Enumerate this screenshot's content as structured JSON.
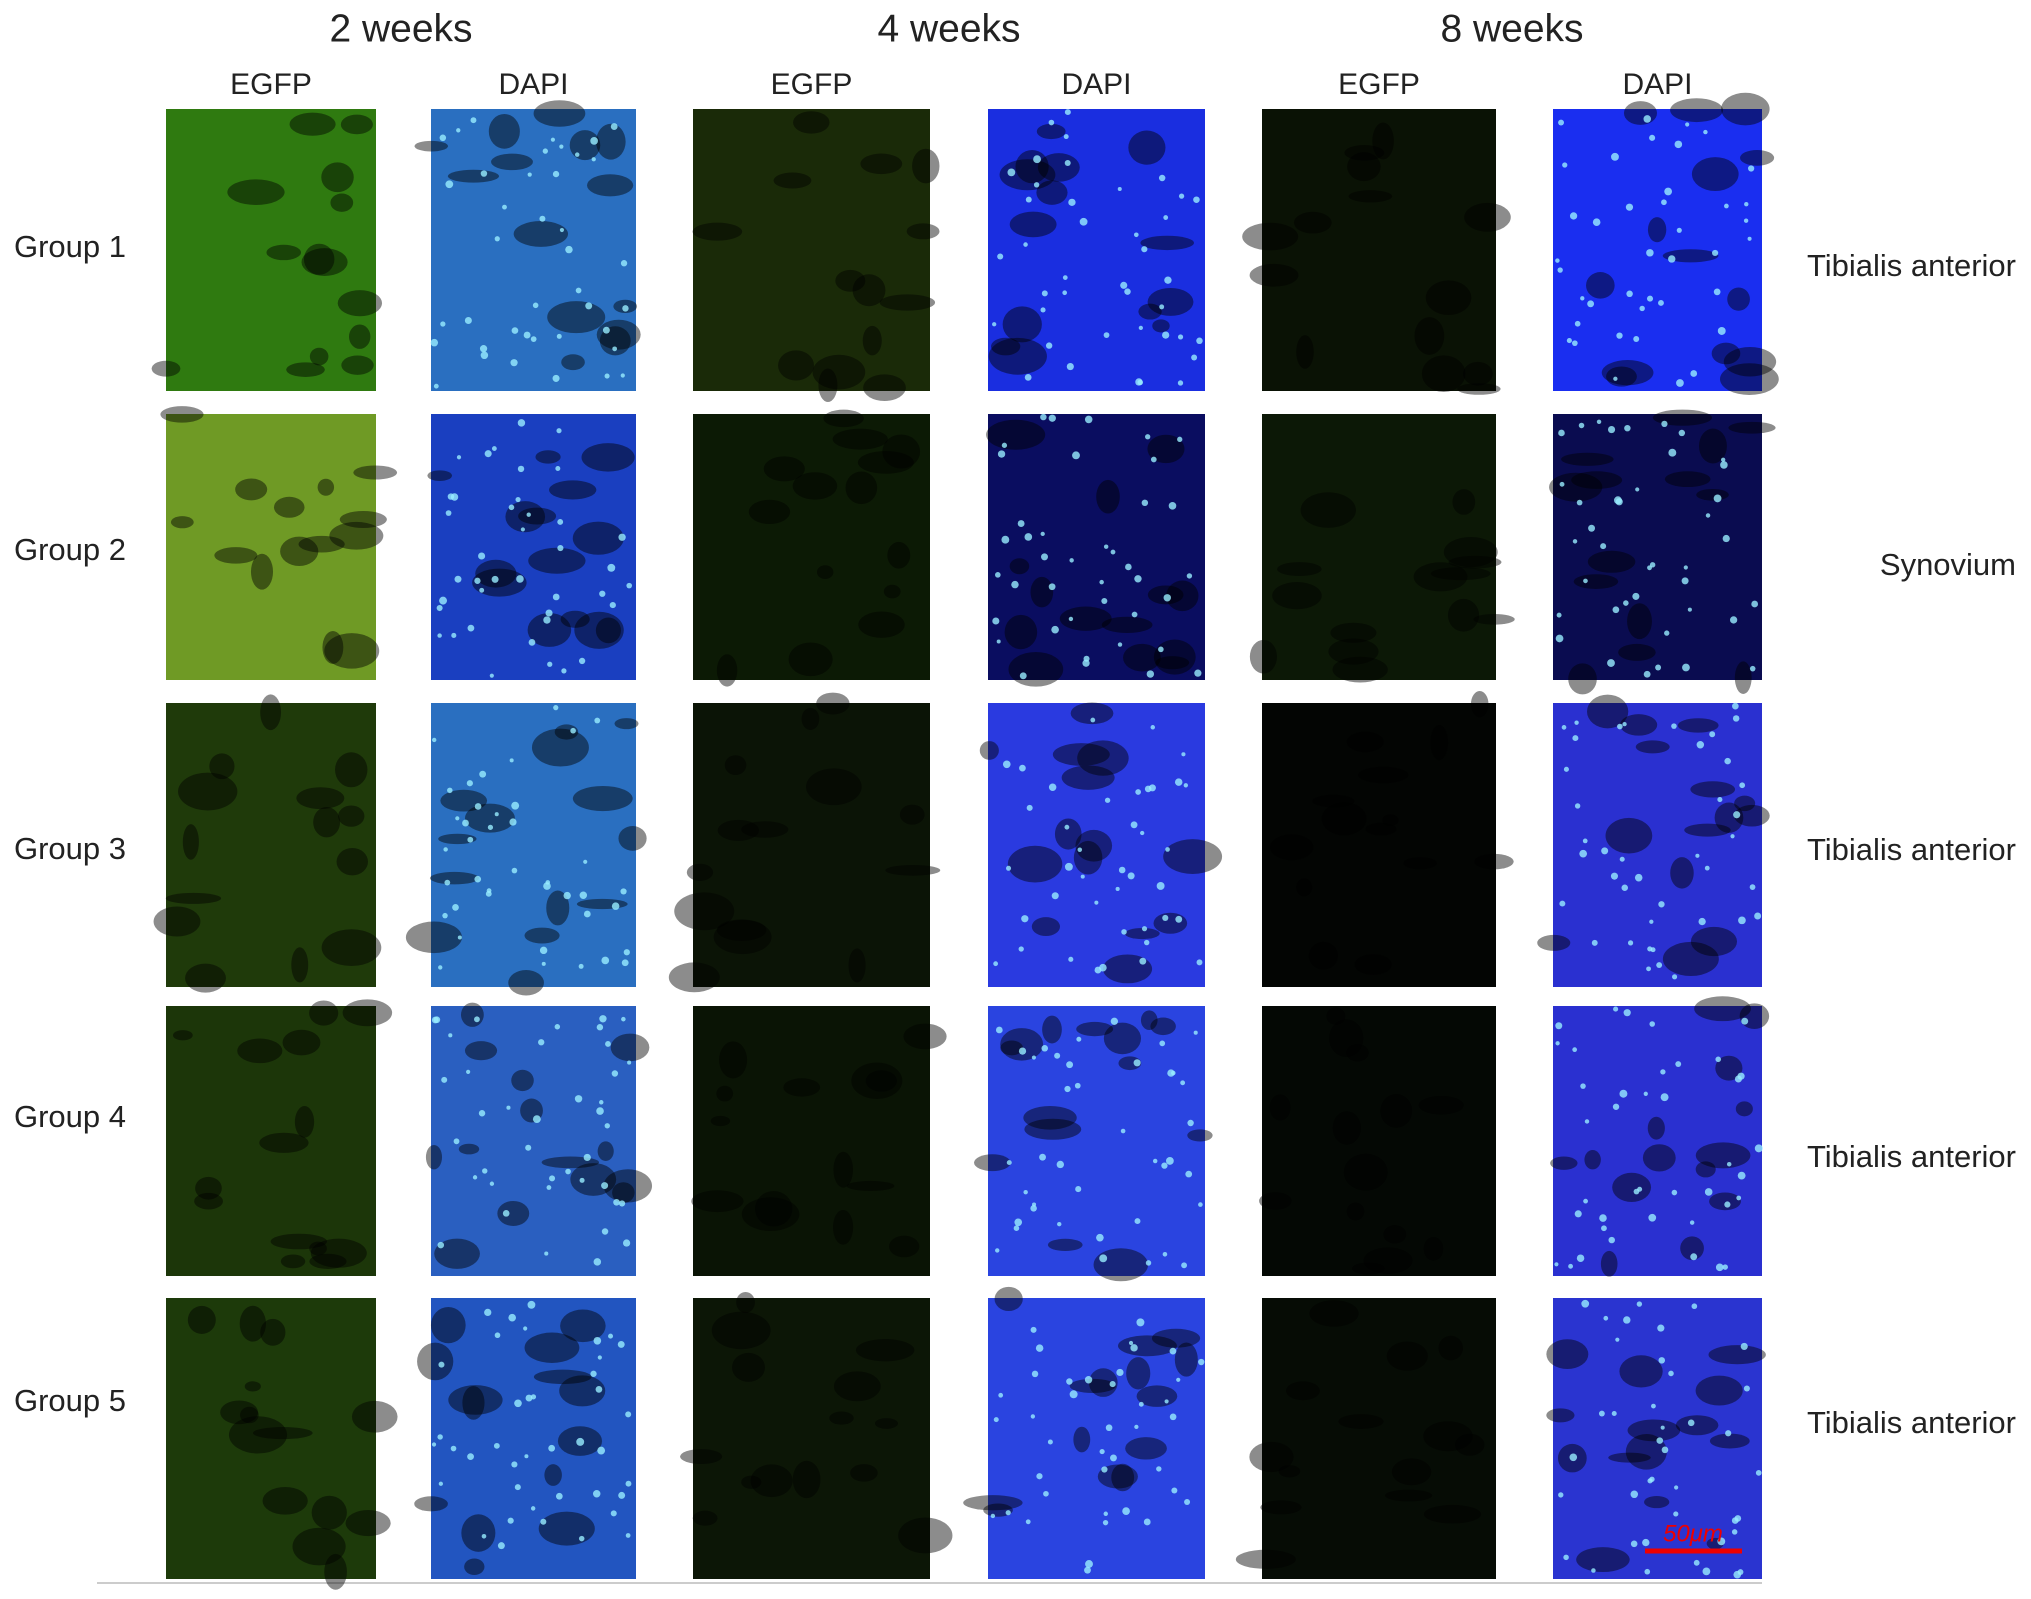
{
  "timepoints": [
    "2 weeks",
    "4 weeks",
    "8 weeks"
  ],
  "stains": [
    "EGFP",
    "DAPI",
    "EGFP",
    "DAPI",
    "EGFP",
    "DAPI"
  ],
  "groups": [
    "Group 1",
    "Group 2",
    "Group 3",
    "Group 4",
    "Group 5"
  ],
  "tissues": [
    "Tibialis anterior",
    "Synovium",
    "Tibialis anterior",
    "Tibialis anterior",
    "Tibialis anterior"
  ],
  "scale_bar": "50μm"
}
